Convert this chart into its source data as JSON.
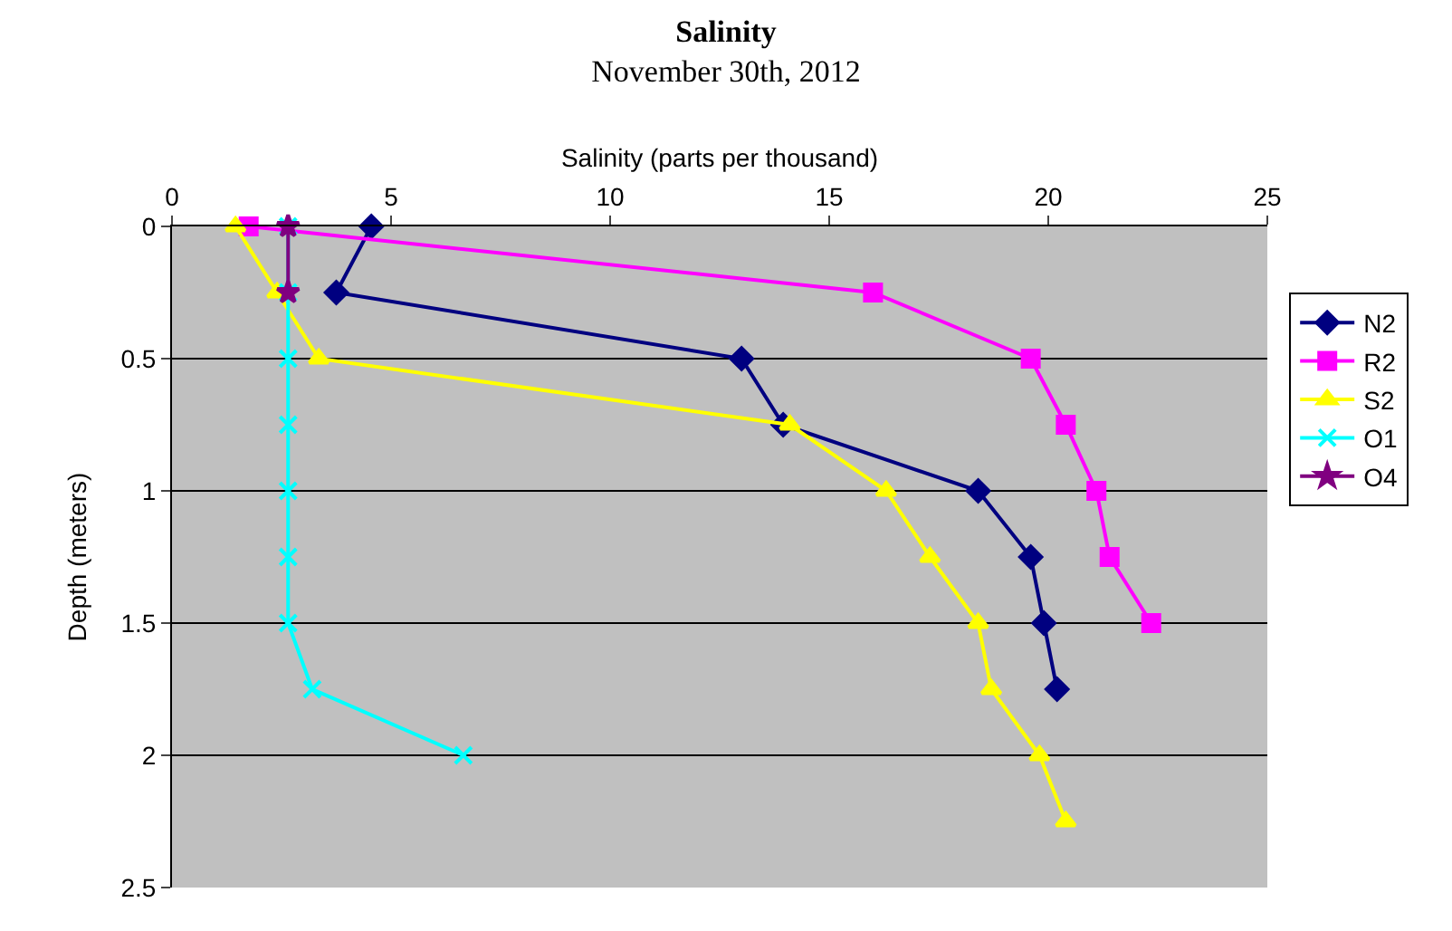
{
  "chart_data": {
    "type": "line",
    "title": "Salinity",
    "subtitle": "November 30th, 2012",
    "xlabel": "Salinity (parts per thousand)",
    "ylabel": "Depth (meters)",
    "xlim": [
      0,
      25
    ],
    "xticks": [
      0,
      5,
      10,
      15,
      20,
      25
    ],
    "ylim": [
      2.5,
      0
    ],
    "yticks": [
      0,
      0.5,
      1,
      1.5,
      2,
      2.5
    ],
    "grid": "y",
    "legend": "right",
    "series": [
      {
        "name": "N2",
        "color": "#000080",
        "marker": "diamond",
        "x": [
          4.55,
          3.75,
          13.0,
          13.95,
          18.4,
          19.6,
          19.9,
          20.2
        ],
        "values": [
          0,
          0.25,
          0.5,
          0.75,
          1.0,
          1.25,
          1.5,
          1.75
        ]
      },
      {
        "name": "R2",
        "color": "#ff00ff",
        "marker": "square",
        "x": [
          1.75,
          16.0,
          19.6,
          20.4,
          21.1,
          21.4,
          22.35
        ],
        "values": [
          0,
          0.25,
          0.5,
          0.75,
          1.0,
          1.25,
          1.5
        ]
      },
      {
        "name": "S2",
        "color": "#ffff00",
        "marker": "triangle",
        "x": [
          1.45,
          2.4,
          3.35,
          14.1,
          16.3,
          17.3,
          18.4,
          18.7,
          19.8,
          20.4
        ],
        "values": [
          0,
          0.25,
          0.5,
          0.75,
          1.0,
          1.25,
          1.5,
          1.75,
          2.0,
          2.25
        ]
      },
      {
        "name": "O1",
        "color": "#00ffff",
        "marker": "cross",
        "x": [
          2.65,
          2.65,
          2.65,
          2.65,
          2.65,
          2.65,
          2.65,
          3.2,
          6.65
        ],
        "values": [
          0,
          0.25,
          0.5,
          0.75,
          1.0,
          1.25,
          1.5,
          1.75,
          2.0
        ]
      },
      {
        "name": "O4",
        "color": "#800080",
        "marker": "star",
        "x": [
          2.65,
          2.65
        ],
        "values": [
          0,
          0.25
        ]
      }
    ]
  }
}
